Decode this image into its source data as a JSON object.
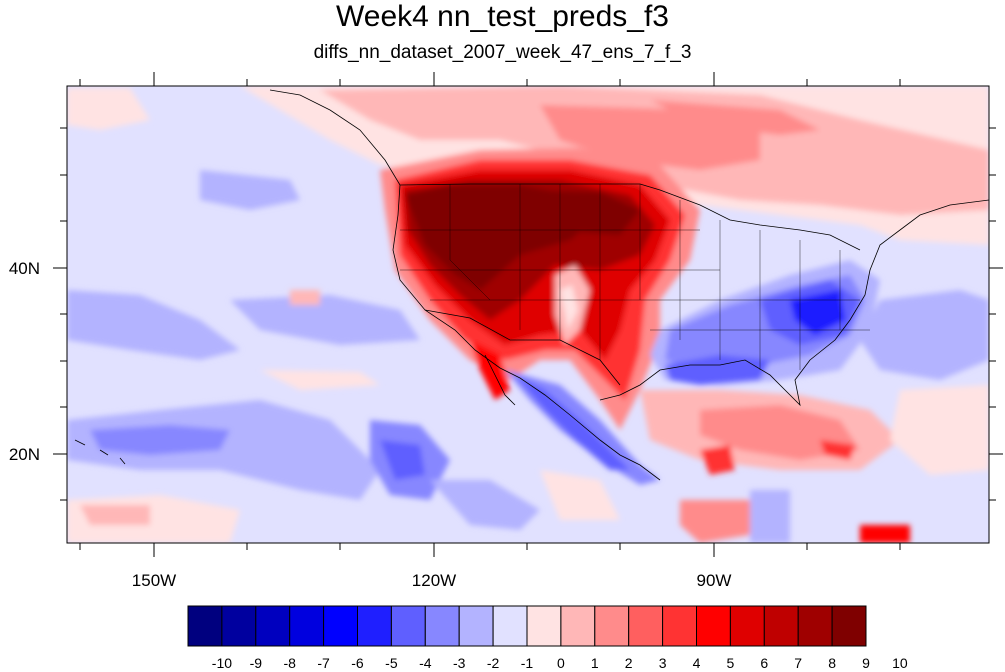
{
  "title": "Week4 nn_test_preds_f3",
  "subtitle": "diffs_nn_dataset_2007_week_47_ens_7_f_3",
  "longitude_labels": [
    "150W",
    "120W",
    "90W"
  ],
  "latitude_labels": [
    "40N",
    "20N"
  ],
  "colorbar": {
    "labels": [
      "-10",
      "-9",
      "-8",
      "-7",
      "-6",
      "-5",
      "-4",
      "-3",
      "-2",
      "-1",
      "0",
      "1",
      "2",
      "3",
      "4",
      "5",
      "6",
      "7",
      "8",
      "9",
      "10"
    ],
    "colors": [
      "#00007f",
      "#00009f",
      "#0000bf",
      "#0000df",
      "#0000ff",
      "#1f1fff",
      "#5f5fff",
      "#8787ff",
      "#b3b3ff",
      "#e1e1ff",
      "#ffe3e3",
      "#ffb7b7",
      "#ff8b8b",
      "#ff5f5f",
      "#ff3333",
      "#ff0000",
      "#df0000",
      "#bf0000",
      "#9f0000",
      "#7f0000"
    ]
  },
  "colors": {
    "background_ocean": "#e1e1ff",
    "positive": "#ff0000",
    "negative": "#0000ff"
  }
}
